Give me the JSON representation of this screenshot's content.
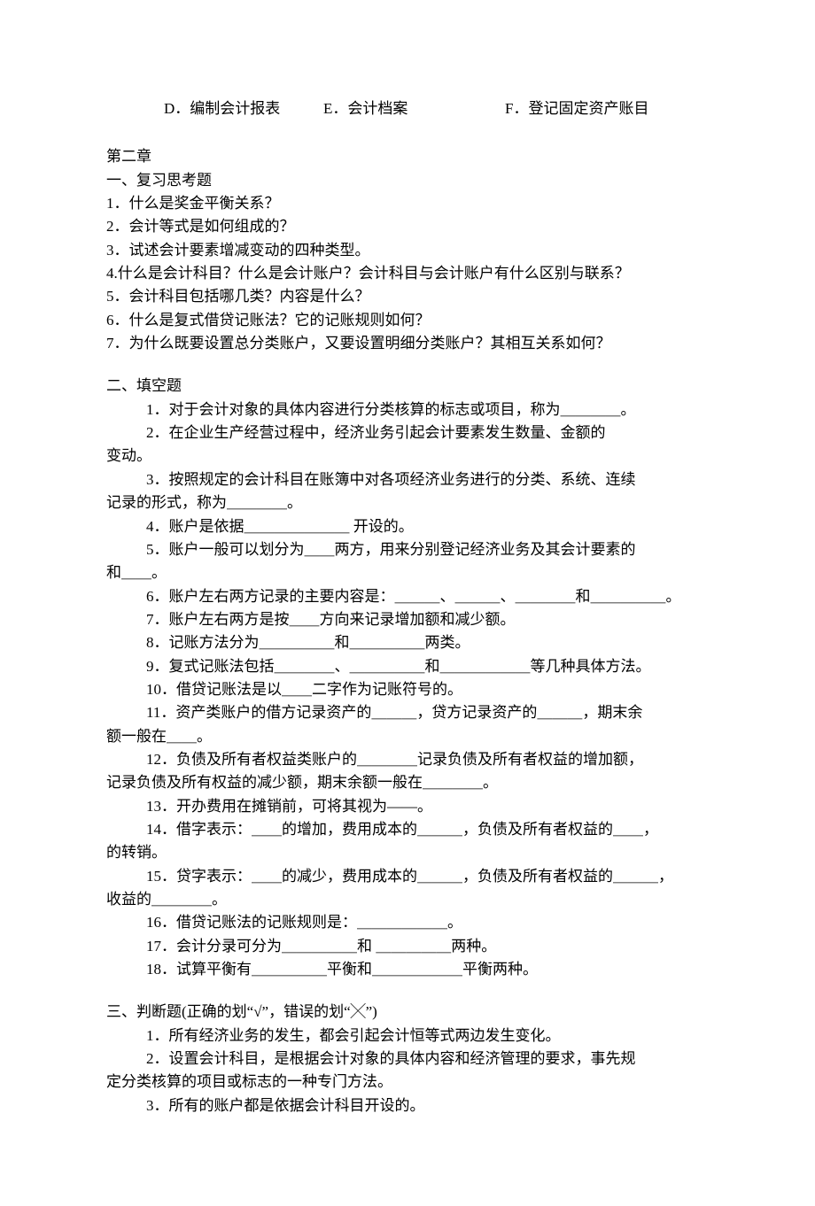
{
  "top_options": {
    "d": "D．编制会计报表",
    "e": "E．会计档案",
    "f": "F．登记固定资产账目"
  },
  "chapter": "第二章",
  "s1": {
    "title": "一、复习思考题",
    "q1": "1．什么是奖金平衡关系？",
    "q2": "2．会计等式是如何组成的？",
    "q3": "3．试述会计要素增减变动的四种类型。",
    "q4": "4.什么是会计科目？什么是会计账户？会计科目与会计账户有什么区别与联系？",
    "q5": "5．会计科目包括哪几类？内容是什么？",
    "q6": "6．什么是复式借贷记账法？它的记账规则如何？",
    "q7": "7．为什么既要设置总分类账户，又要设置明细分类账户？其相互关系如何？"
  },
  "s2": {
    "title": "二、填空题",
    "q1": "1．对于会计对象的具体内容进行分类核算的标志或项目，称为＿＿＿＿。",
    "q2a": "2．在企业生产经营过程中，经济业务引起会计要素发生数量、金额的",
    "q2b": "变动。",
    "q3a": "3．按照规定的会计科目在账簿中对各项经济业务进行的分类、系统、连续",
    "q3b": "记录的形式，称为＿＿＿＿。",
    "q4": "4．账户是依据＿＿＿＿＿＿＿ 开设的。",
    "q5a": "5．账户一般可以划分为＿＿两方，用来分别登记经济业务及其会计要素的",
    "q5b": "和＿＿。",
    "q6": "6．账户左右两方记录的主要内容是：＿＿＿、＿＿＿、＿＿＿＿和＿＿＿＿＿。",
    "q7": "7．账户左右两方是按＿＿方向来记录增加额和减少额。",
    "q8": "8．记账方法分为＿＿＿＿＿和＿＿＿＿＿两类。",
    "q9": "9．复式记账法包括＿＿＿＿、＿＿＿＿＿和＿＿＿＿＿＿等几种具体方法。",
    "q10": "10．借贷记账法是以＿＿二字作为记账符号的。",
    "q11a": "11．资产类账户的借方记录资产的＿＿＿，贷方记录资产的＿＿＿，期末余",
    "q11b": "额一般在＿＿。",
    "q12a": "12．负债及所有者权益类账户的＿＿＿＿记录负债及所有者权益的增加额，",
    "q12b": "记录负债及所有权益的减少额，期末余额一般在＿＿＿＿。",
    "q13": "13．开办费用在摊销前，可将其视为——。",
    "q14a": "14．借字表示：＿＿的增加，费用成本的＿＿＿，负债及所有者权益的＿＿，",
    "q14b": "的转销。",
    "q15a": "15．贷字表示：＿＿的减少，费用成本的＿＿＿，负债及所有者权益的＿＿＿，",
    "q15b": "收益的＿＿＿＿。",
    "q16": "16．借贷记账法的记账规则是：＿＿＿＿＿＿。",
    "q17": "17．会计分录可分为＿＿＿＿＿和 ＿＿＿＿＿两种。",
    "q18": "18．试算平衡有＿＿＿＿＿平衡和＿＿＿＿＿＿平衡两种。"
  },
  "s3": {
    "title": "三、判断题(正确的划“√”，错误的划“╳”)",
    "q1": "1．所有经济业务的发生，都会引起会计恒等式两边发生变化。",
    "q2a": "2．设置会计科目，是根据会计对象的具体内容和经济管理的要求，事先规",
    "q2b": "定分类核算的项目或标志的一种专门方法。",
    "q3": "3．所有的账户都是依据会计科目开设的。"
  }
}
